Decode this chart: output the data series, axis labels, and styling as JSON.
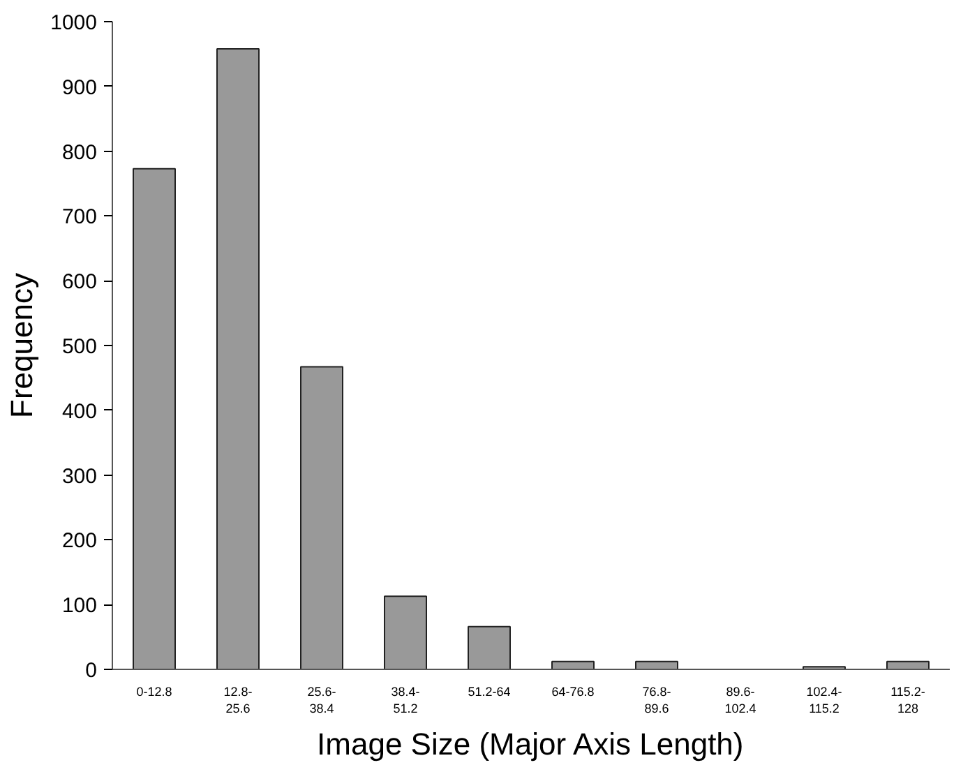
{
  "chart_data": {
    "type": "bar",
    "xlabel": "Image Size (Major Axis Length)",
    "ylabel": "Frequency",
    "categories": [
      "0-12.8",
      "12.8-25.6",
      "25.6-38.4",
      "38.4-51.2",
      "51.2-64",
      "64-76.8",
      "76.8-89.6",
      "89.6-102.4",
      "102.4-115.2",
      "115.2-128"
    ],
    "values": [
      773,
      958,
      467,
      113,
      66,
      12,
      12,
      0,
      4,
      12
    ],
    "color": "#999999",
    "ylim": [
      0,
      1000
    ],
    "yticks": [
      0,
      100,
      200,
      300,
      400,
      500,
      600,
      700,
      800,
      900,
      1000
    ],
    "grid": false
  }
}
